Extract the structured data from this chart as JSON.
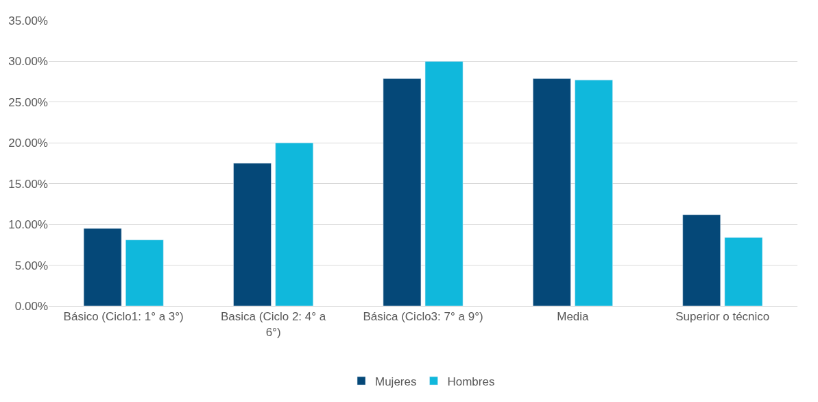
{
  "chart_data": {
    "type": "bar",
    "categories": [
      "Básico (Ciclo1: 1° a 3°)",
      "Basica (Ciclo 2: 4° a 6°)",
      "Básica (Ciclo3: 7° a 9°)",
      "Media",
      "Superior o técnico"
    ],
    "series": [
      {
        "name": "Mujeres",
        "color": "#054878",
        "values": [
          9.5,
          17.5,
          27.9,
          27.9,
          11.2
        ]
      },
      {
        "name": "Hombres",
        "color": "#10b8dc",
        "values": [
          8.1,
          20.0,
          30.0,
          27.7,
          8.4
        ]
      }
    ],
    "ylim": [
      0,
      35
    ],
    "yticks": [
      {
        "value": 0,
        "label": "0.00%"
      },
      {
        "value": 5,
        "label": "5.00%"
      },
      {
        "value": 10,
        "label": "10.00%"
      },
      {
        "value": 15,
        "label": "15.00%"
      },
      {
        "value": 20,
        "label": "20.00%"
      },
      {
        "value": 25,
        "label": "25.00%"
      },
      {
        "value": 30,
        "label": "30.00%"
      },
      {
        "value": 35,
        "label": "35.00%"
      }
    ],
    "grid": "y",
    "legend": "bottom"
  }
}
